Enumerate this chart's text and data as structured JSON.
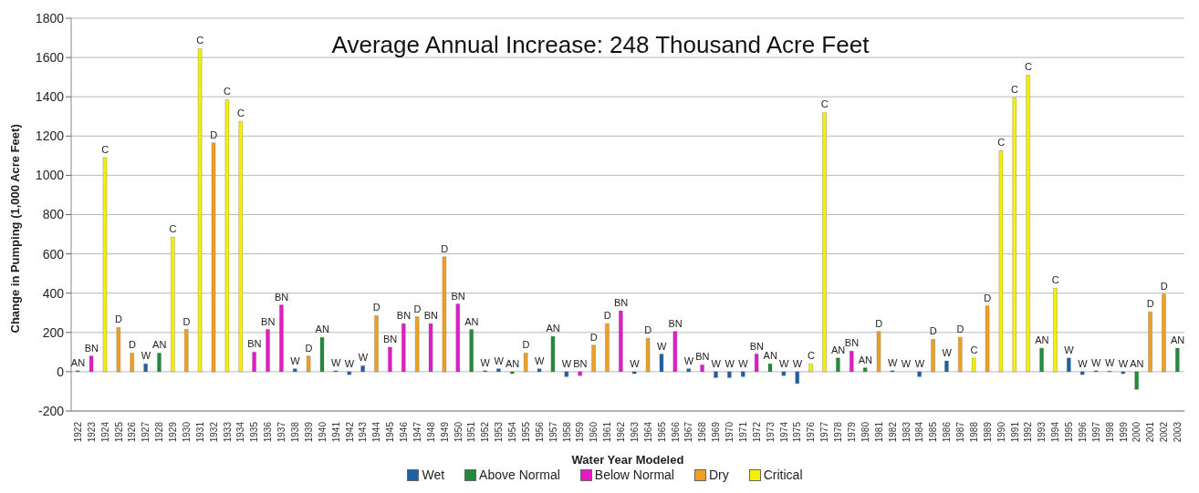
{
  "chart_data": {
    "type": "bar",
    "title": "Average Annual Increase: 248 Thousand Acre Feet",
    "xlabel": "Water Year Modeled",
    "ylabel": "Change in Pumping (1,000 Acre Feet)",
    "categories": [
      "1922",
      "1923",
      "1924",
      "1925",
      "1926",
      "1927",
      "1928",
      "1929",
      "1930",
      "1931",
      "1932",
      "1933",
      "1934",
      "1935",
      "1936",
      "1937",
      "1938",
      "1939",
      "1940",
      "1941",
      "1942",
      "1943",
      "1944",
      "1945",
      "1946",
      "1947",
      "1948",
      "1949",
      "1950",
      "1951",
      "1952",
      "1953",
      "1954",
      "1955",
      "1956",
      "1957",
      "1958",
      "1959",
      "1960",
      "1961",
      "1962",
      "1963",
      "1964",
      "1965",
      "1966",
      "1967",
      "1968",
      "1969",
      "1970",
      "1971",
      "1972",
      "1973",
      "1974",
      "1975",
      "1976",
      "1977",
      "1978",
      "1979",
      "1980",
      "1981",
      "1982",
      "1983",
      "1984",
      "1985",
      "1986",
      "1987",
      "1988",
      "1989",
      "1990",
      "1991",
      "1992",
      "1993",
      "1994",
      "1995",
      "1996",
      "1997",
      "1998",
      "1999",
      "2000",
      "2001",
      "2002",
      "2003"
    ],
    "stacked": true,
    "series": [
      {
        "name": "Wet",
        "color": "#1f5fa8",
        "values": [
          null,
          null,
          null,
          null,
          null,
          40,
          null,
          null,
          null,
          null,
          null,
          null,
          null,
          null,
          null,
          null,
          15,
          null,
          null,
          5,
          -15,
          30,
          null,
          null,
          null,
          null,
          null,
          null,
          null,
          null,
          5,
          15,
          null,
          null,
          15,
          null,
          -25,
          null,
          null,
          null,
          null,
          -10,
          null,
          90,
          null,
          15,
          null,
          -30,
          -30,
          -25,
          null,
          null,
          -20,
          -60,
          null,
          null,
          null,
          null,
          null,
          null,
          5,
          0,
          -25,
          null,
          55,
          null,
          null,
          null,
          null,
          null,
          null,
          null,
          null,
          70,
          -15,
          5,
          3,
          -10,
          null,
          null,
          null,
          null
        ],
        "value_labels": [
          null,
          null,
          null,
          null,
          null,
          "W",
          null,
          null,
          null,
          null,
          null,
          null,
          null,
          null,
          null,
          null,
          "W",
          null,
          null,
          "W",
          "W",
          "W",
          null,
          null,
          null,
          null,
          null,
          null,
          null,
          null,
          "W",
          "W",
          null,
          null,
          "W",
          null,
          "W",
          null,
          null,
          null,
          null,
          "W",
          null,
          "W",
          null,
          "W",
          null,
          "W",
          "W",
          "W",
          null,
          null,
          "W",
          "W",
          null,
          null,
          null,
          null,
          null,
          null,
          "W",
          "W",
          "W",
          null,
          "W",
          null,
          null,
          null,
          null,
          null,
          null,
          null,
          null,
          "W",
          "W",
          "W",
          "W",
          "W",
          null,
          null,
          null,
          null
        ]
      },
      {
        "name": "Above Normal",
        "color": "#1e8c3a",
        "values": [
          5,
          null,
          null,
          null,
          null,
          null,
          95,
          null,
          null,
          null,
          null,
          null,
          null,
          null,
          null,
          null,
          null,
          null,
          175,
          null,
          null,
          null,
          null,
          null,
          null,
          null,
          null,
          null,
          null,
          215,
          null,
          null,
          -10,
          null,
          null,
          180,
          null,
          null,
          null,
          null,
          null,
          null,
          null,
          null,
          null,
          null,
          null,
          null,
          null,
          null,
          null,
          40,
          null,
          null,
          null,
          null,
          70,
          null,
          20,
          null,
          null,
          null,
          null,
          null,
          null,
          null,
          null,
          null,
          null,
          null,
          null,
          120,
          null,
          null,
          null,
          null,
          null,
          null,
          -90,
          null,
          null,
          120
        ],
        "value_labels": [
          "AN",
          null,
          null,
          null,
          null,
          null,
          "AN",
          null,
          null,
          null,
          null,
          null,
          null,
          null,
          null,
          null,
          null,
          null,
          "AN",
          null,
          null,
          null,
          null,
          null,
          null,
          null,
          null,
          null,
          null,
          "AN",
          null,
          null,
          "AN",
          null,
          null,
          "AN",
          null,
          null,
          null,
          null,
          null,
          null,
          null,
          null,
          null,
          null,
          null,
          null,
          null,
          null,
          null,
          "AN",
          null,
          null,
          null,
          null,
          "AN",
          null,
          "AN",
          null,
          null,
          null,
          null,
          null,
          null,
          null,
          null,
          null,
          null,
          null,
          null,
          "AN",
          null,
          null,
          null,
          null,
          null,
          null,
          "AN",
          null,
          null,
          "AN"
        ]
      },
      {
        "name": "Below Normal",
        "color": "#e619c8",
        "values": [
          null,
          80,
          null,
          null,
          null,
          null,
          null,
          null,
          null,
          null,
          null,
          null,
          null,
          100,
          215,
          340,
          null,
          null,
          null,
          null,
          null,
          null,
          null,
          125,
          245,
          null,
          245,
          null,
          345,
          null,
          null,
          null,
          null,
          null,
          null,
          null,
          null,
          -20,
          null,
          null,
          310,
          null,
          null,
          null,
          205,
          null,
          35,
          null,
          null,
          null,
          90,
          null,
          null,
          null,
          null,
          null,
          null,
          105,
          null,
          null,
          null,
          null,
          null,
          null,
          null,
          null,
          null,
          null,
          null,
          null,
          null,
          null,
          null,
          null,
          null,
          null,
          null,
          null,
          null,
          null,
          null,
          null
        ],
        "value_labels": [
          null,
          "BN",
          null,
          null,
          null,
          null,
          null,
          null,
          null,
          null,
          null,
          null,
          null,
          "BN",
          "BN",
          "BN",
          null,
          null,
          null,
          null,
          null,
          null,
          null,
          "BN",
          "BN",
          null,
          "BN",
          null,
          "BN",
          null,
          null,
          null,
          null,
          null,
          null,
          null,
          null,
          "BN",
          null,
          null,
          "BN",
          null,
          null,
          null,
          "BN",
          null,
          "BN",
          null,
          null,
          null,
          "BN",
          null,
          null,
          null,
          null,
          null,
          null,
          "BN",
          null,
          null,
          null,
          null,
          null,
          null,
          null,
          null,
          null,
          null,
          null,
          null,
          null,
          null,
          null,
          null,
          null,
          null,
          null,
          null,
          null,
          null,
          null,
          null
        ]
      },
      {
        "name": "Dry",
        "color": "#f0a020",
        "values": [
          null,
          null,
          null,
          225,
          95,
          null,
          null,
          null,
          215,
          null,
          1165,
          null,
          null,
          null,
          null,
          null,
          null,
          80,
          null,
          null,
          null,
          null,
          285,
          null,
          null,
          280,
          null,
          585,
          null,
          null,
          null,
          null,
          null,
          95,
          null,
          null,
          null,
          null,
          135,
          245,
          null,
          null,
          170,
          null,
          null,
          null,
          null,
          null,
          null,
          null,
          null,
          null,
          null,
          null,
          null,
          null,
          null,
          null,
          null,
          205,
          null,
          null,
          null,
          165,
          null,
          175,
          null,
          335,
          null,
          null,
          null,
          null,
          null,
          null,
          null,
          null,
          null,
          null,
          null,
          305,
          395,
          null
        ],
        "value_labels": [
          null,
          null,
          null,
          "D",
          "D",
          null,
          null,
          null,
          "D",
          null,
          "D",
          null,
          null,
          null,
          null,
          null,
          null,
          "D",
          null,
          null,
          null,
          null,
          "D",
          null,
          null,
          "D",
          null,
          "D",
          null,
          null,
          null,
          null,
          null,
          "D",
          null,
          null,
          null,
          null,
          "D",
          "D",
          null,
          null,
          "D",
          null,
          null,
          null,
          null,
          null,
          null,
          null,
          null,
          null,
          null,
          null,
          null,
          null,
          null,
          null,
          null,
          "D",
          null,
          null,
          null,
          "D",
          null,
          "D",
          null,
          "D",
          null,
          null,
          null,
          null,
          null,
          null,
          null,
          null,
          null,
          null,
          null,
          "D",
          "D",
          null
        ]
      },
      {
        "name": "Critical",
        "color": "#f5f000",
        "values": [
          null,
          null,
          1090,
          null,
          null,
          null,
          null,
          685,
          null,
          1645,
          null,
          1385,
          1275,
          null,
          null,
          null,
          null,
          null,
          null,
          null,
          null,
          null,
          null,
          null,
          null,
          null,
          null,
          null,
          null,
          null,
          null,
          null,
          null,
          null,
          null,
          null,
          null,
          null,
          null,
          null,
          null,
          null,
          null,
          null,
          null,
          null,
          null,
          null,
          null,
          null,
          null,
          null,
          null,
          null,
          40,
          1320,
          null,
          null,
          null,
          null,
          null,
          null,
          null,
          null,
          null,
          null,
          70,
          null,
          1125,
          1395,
          1510,
          null,
          425,
          null,
          null,
          null,
          null,
          null,
          null,
          null,
          null,
          null
        ],
        "value_labels": [
          null,
          null,
          "C",
          null,
          null,
          null,
          null,
          "C",
          null,
          "C",
          null,
          "C",
          "C",
          null,
          null,
          null,
          null,
          null,
          null,
          null,
          null,
          null,
          null,
          null,
          null,
          null,
          null,
          null,
          null,
          null,
          null,
          null,
          null,
          null,
          null,
          null,
          null,
          null,
          null,
          null,
          null,
          null,
          null,
          null,
          null,
          null,
          null,
          null,
          null,
          null,
          null,
          null,
          null,
          null,
          "C",
          "C",
          null,
          null,
          null,
          null,
          null,
          null,
          null,
          null,
          null,
          null,
          "C",
          null,
          "C",
          "C",
          "C",
          null,
          "C",
          null,
          null,
          null,
          null,
          null,
          null,
          null,
          null,
          null
        ]
      }
    ],
    "ylim": [
      -200,
      1800
    ],
    "yticks": [
      -200,
      0,
      200,
      400,
      600,
      800,
      1000,
      1200,
      1400,
      1600,
      1800
    ],
    "grid": "y",
    "legend": "bottom"
  }
}
